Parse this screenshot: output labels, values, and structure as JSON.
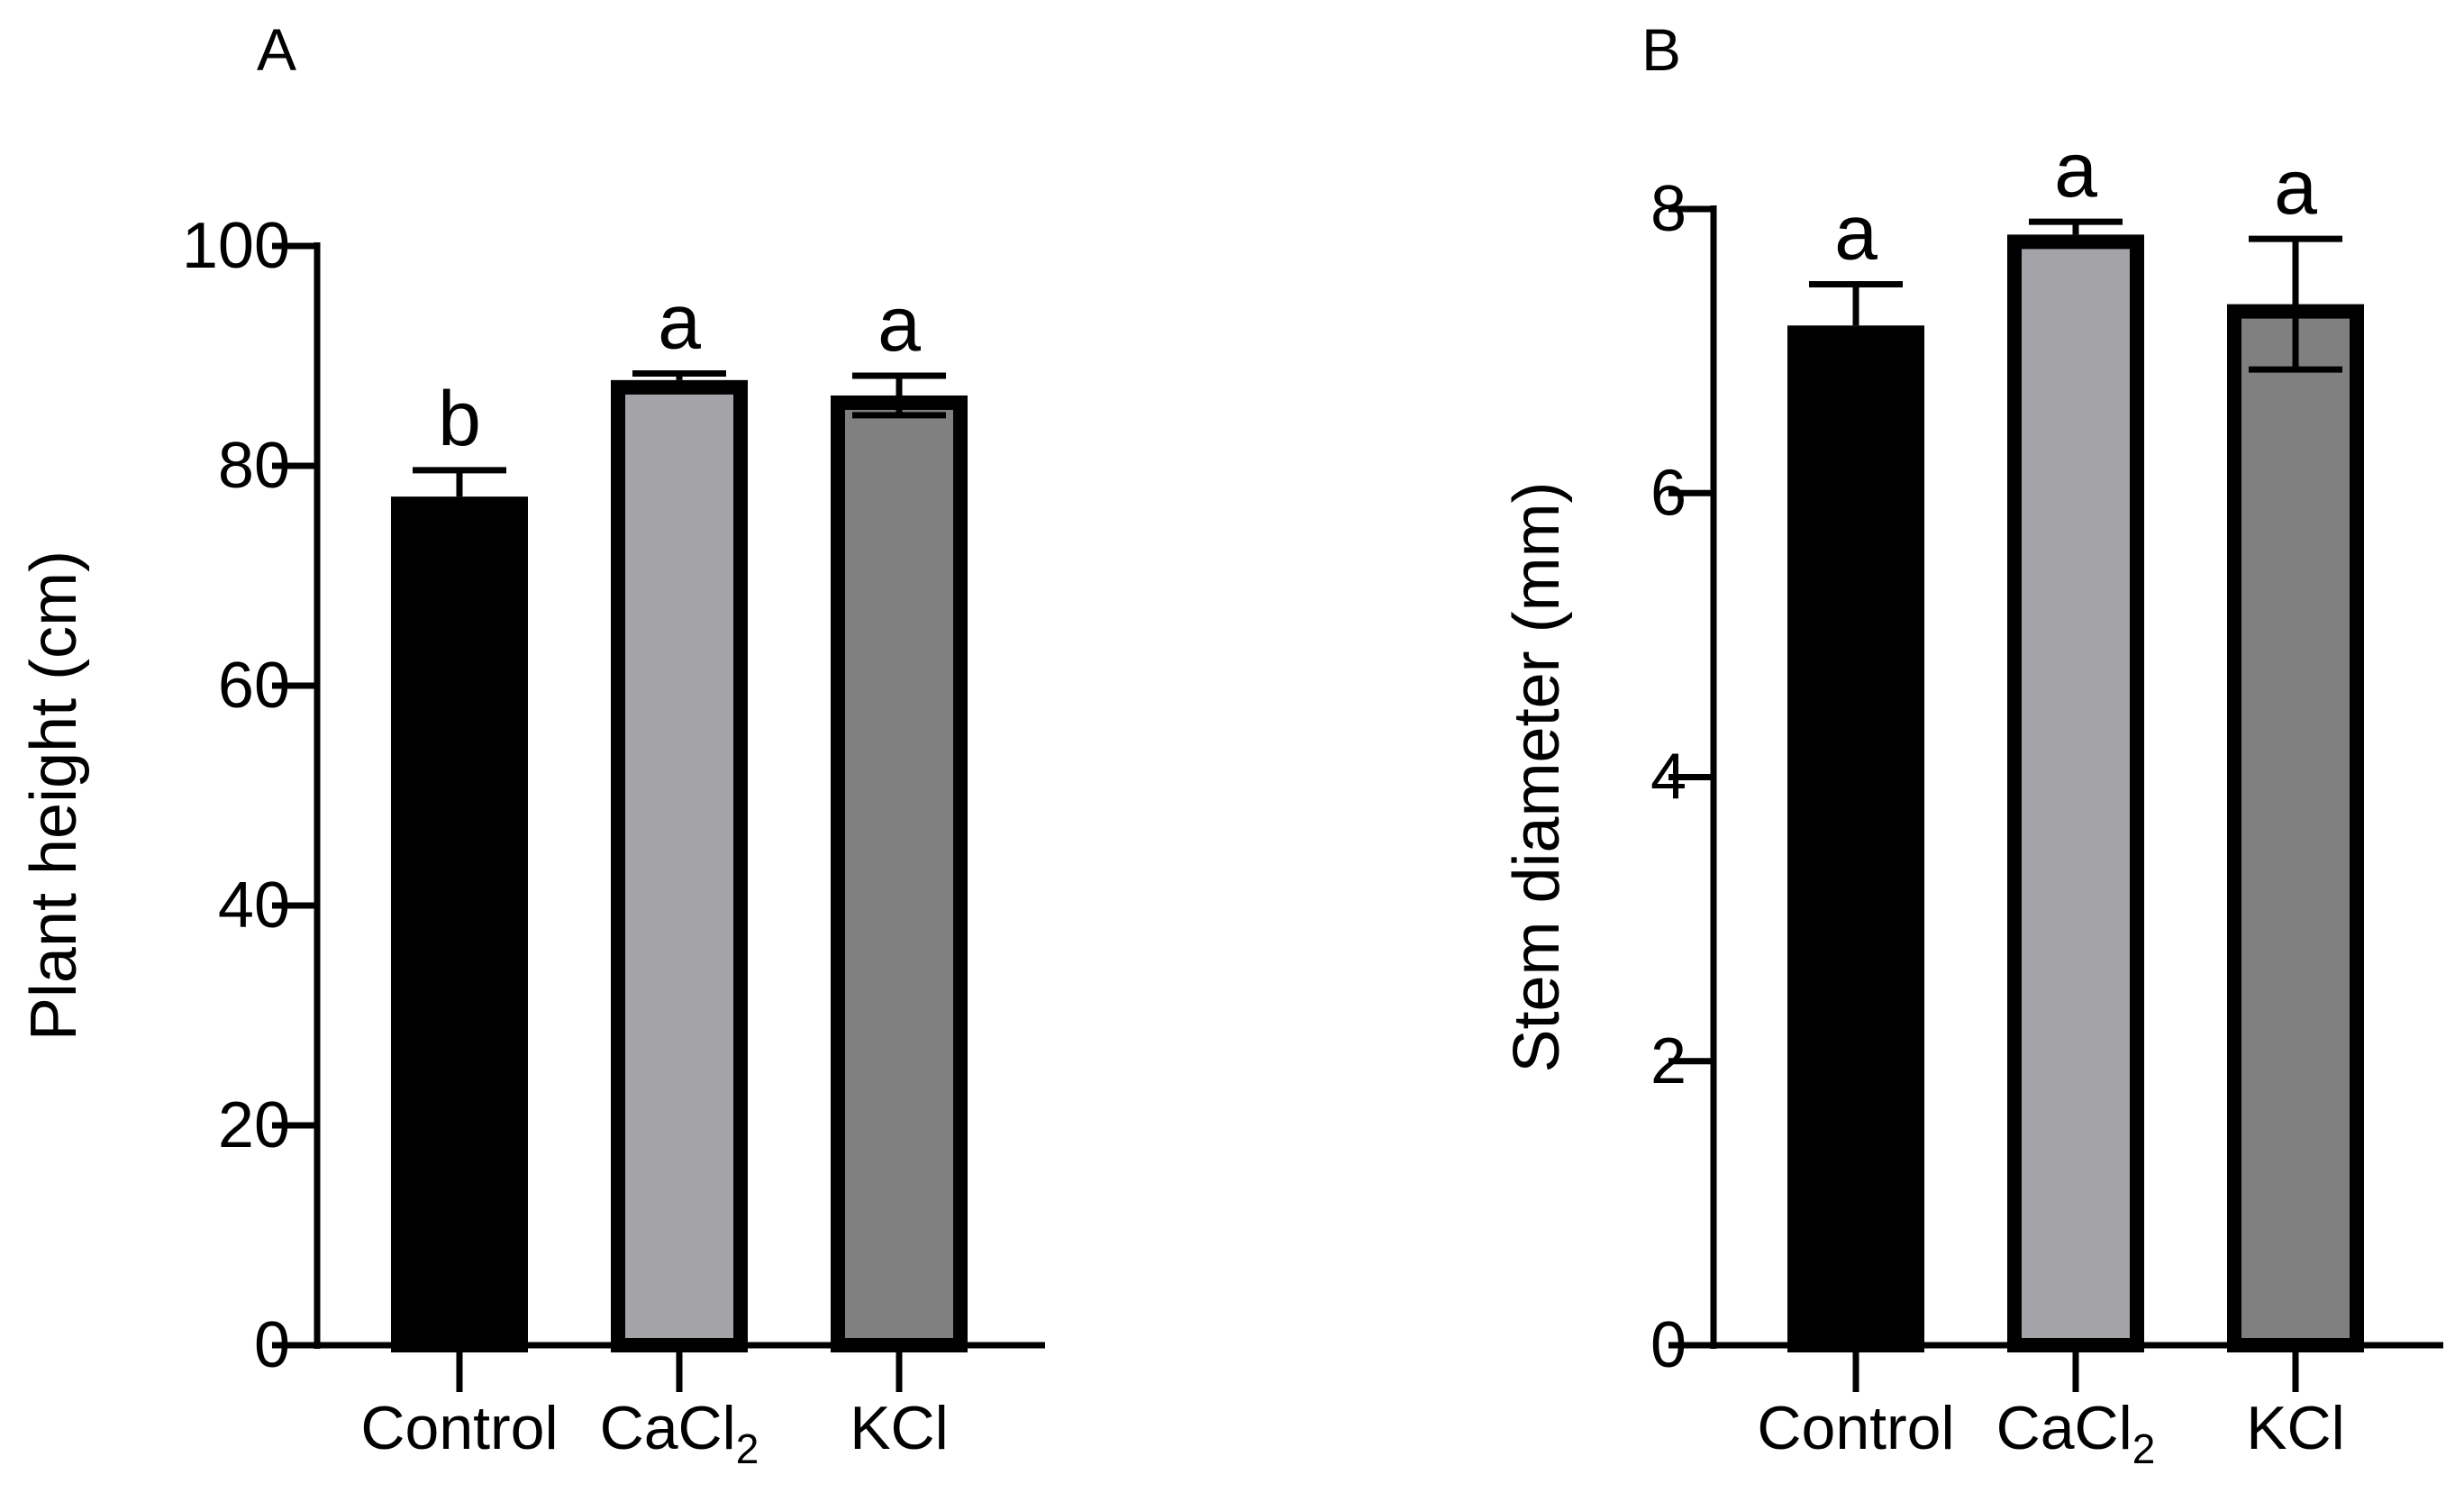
{
  "figure": {
    "panels_count": 2
  },
  "chart_data": [
    {
      "type": "bar",
      "panel_label": "A",
      "categories": [
        {
          "main": "Control",
          "sub": ""
        },
        {
          "main": "CaCl",
          "sub": "2"
        },
        {
          "main": "KCl",
          "sub": ""
        }
      ],
      "values": [
        77.2,
        87.8,
        86.4
      ],
      "errors": [
        2.4,
        0.6,
        1.8
      ],
      "significance": [
        "b",
        "a",
        "a"
      ],
      "xlabel": "",
      "ylabel": "Plant height (cm)",
      "ylim": [
        0,
        100
      ],
      "yticks": [
        0,
        20,
        40,
        60,
        80,
        100
      ],
      "bar_colors": [
        "#000000",
        "#a4a3a8",
        "#808080"
      ],
      "error_direction": [
        "up",
        "up",
        "both"
      ]
    },
    {
      "type": "bar",
      "panel_label": "B",
      "categories": [
        {
          "main": "Control",
          "sub": ""
        },
        {
          "main": "CaCl",
          "sub": "2"
        },
        {
          "main": "KCl",
          "sub": ""
        }
      ],
      "values": [
        7.18,
        7.82,
        7.33
      ],
      "errors": [
        0.29,
        0.09,
        0.46
      ],
      "significance": [
        "a",
        "a",
        "a"
      ],
      "xlabel": "",
      "ylabel": "Stem diameter (mm)",
      "ylim": [
        0,
        8
      ],
      "yticks": [
        0,
        2,
        4,
        6,
        8
      ],
      "bar_colors": [
        "#000000",
        "#a4a3a8",
        "#808080"
      ],
      "error_direction": [
        "up",
        "up",
        "both"
      ]
    }
  ]
}
